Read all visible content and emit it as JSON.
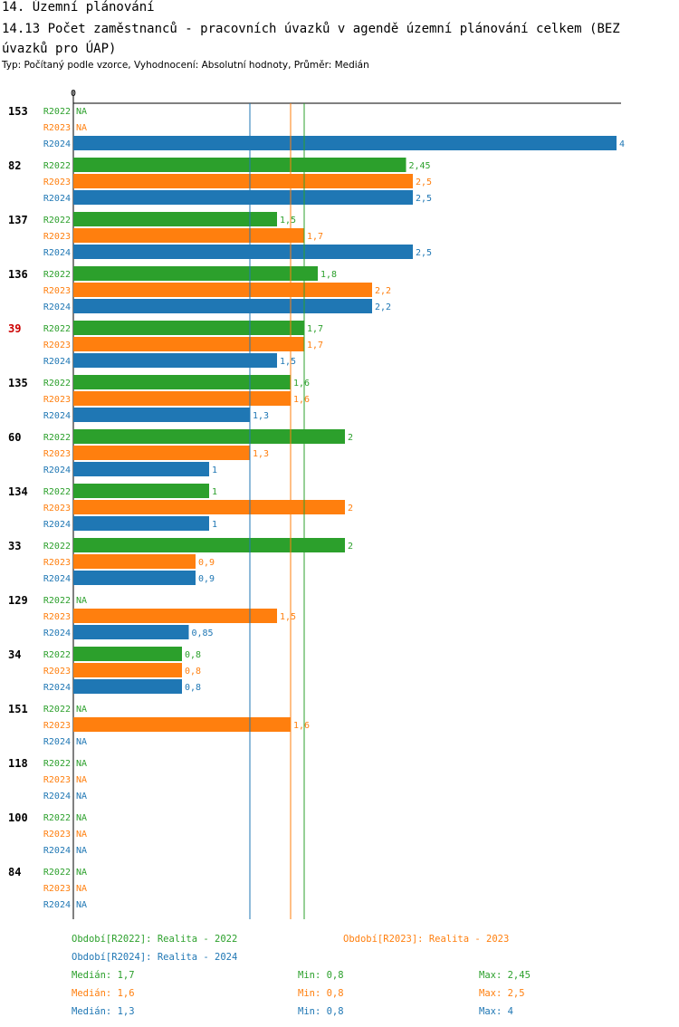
{
  "header": {
    "section": "14. Územní plánování",
    "title": "14.13 Počet zaměstnanců - pracovních úvazků v agendě územní plánování celkem (BEZ úvazků pro ÚAP)",
    "subtitle": "Typ: Počítaný podle vzorce, Vyhodnocení: Absolutní hodnoty, Průměr: Medián"
  },
  "chart_data": {
    "type": "bar",
    "orientation": "horizontal",
    "axis_zero_label": "0",
    "xlim": [
      0,
      4
    ],
    "na_label": "NA",
    "colors": {
      "R2022": "#2ca02c",
      "R2023": "#ff7f0e",
      "R2024": "#1f77b4",
      "highlight": "#cc0000"
    },
    "series_names": [
      "R2022",
      "R2023",
      "R2024"
    ],
    "groups": [
      {
        "label": "153",
        "highlight": false,
        "values": [
          null,
          null,
          4
        ],
        "value_labels": [
          "NA",
          "NA",
          "4"
        ]
      },
      {
        "label": "82",
        "highlight": false,
        "values": [
          2.45,
          2.5,
          2.5
        ],
        "value_labels": [
          "2,45",
          "2,5",
          "2,5"
        ]
      },
      {
        "label": "137",
        "highlight": false,
        "values": [
          1.5,
          1.7,
          2.5
        ],
        "value_labels": [
          "1,5",
          "1,7",
          "2,5"
        ]
      },
      {
        "label": "136",
        "highlight": false,
        "values": [
          1.8,
          2.2,
          2.2
        ],
        "value_labels": [
          "1,8",
          "2,2",
          "2,2"
        ]
      },
      {
        "label": "39",
        "highlight": true,
        "values": [
          1.7,
          1.7,
          1.5
        ],
        "value_labels": [
          "1,7",
          "1,7",
          "1,5"
        ]
      },
      {
        "label": "135",
        "highlight": false,
        "values": [
          1.6,
          1.6,
          1.3
        ],
        "value_labels": [
          "1,6",
          "1,6",
          "1,3"
        ]
      },
      {
        "label": "60",
        "highlight": false,
        "values": [
          2,
          1.3,
          1
        ],
        "value_labels": [
          "2",
          "1,3",
          "1"
        ]
      },
      {
        "label": "134",
        "highlight": false,
        "values": [
          1,
          2,
          1
        ],
        "value_labels": [
          "1",
          "2",
          "1"
        ]
      },
      {
        "label": "33",
        "highlight": false,
        "values": [
          2,
          0.9,
          0.9
        ],
        "value_labels": [
          "2",
          "0,9",
          "0,9"
        ]
      },
      {
        "label": "129",
        "highlight": false,
        "values": [
          null,
          1.5,
          0.85
        ],
        "value_labels": [
          "NA",
          "1,5",
          "0,85"
        ]
      },
      {
        "label": "34",
        "highlight": false,
        "values": [
          0.8,
          0.8,
          0.8
        ],
        "value_labels": [
          "0,8",
          "0,8",
          "0,8"
        ]
      },
      {
        "label": "151",
        "highlight": false,
        "values": [
          null,
          1.6,
          null
        ],
        "value_labels": [
          "NA",
          "1,6",
          "NA"
        ]
      },
      {
        "label": "118",
        "highlight": false,
        "values": [
          null,
          null,
          null
        ],
        "value_labels": [
          "NA",
          "NA",
          "NA"
        ]
      },
      {
        "label": "100",
        "highlight": false,
        "values": [
          null,
          null,
          null
        ],
        "value_labels": [
          "NA",
          "NA",
          "NA"
        ]
      },
      {
        "label": "84",
        "highlight": false,
        "values": [
          null,
          null,
          null
        ],
        "value_labels": [
          "NA",
          "NA",
          "NA"
        ]
      }
    ],
    "median_lines": [
      {
        "series": "R2024",
        "value": 1.3
      },
      {
        "series": "R2023",
        "value": 1.6
      },
      {
        "series": "R2022",
        "value": 1.7
      }
    ],
    "legend": [
      {
        "series": "R2022",
        "text": "Období[R2022]: Realita - 2022"
      },
      {
        "series": "R2023",
        "text": "Období[R2023]: Realita - 2023"
      },
      {
        "series": "R2024",
        "text": "Období[R2024]: Realita - 2024"
      }
    ],
    "stats": [
      {
        "series": "R2022",
        "median": "Medián: 1,7",
        "min": "Min: 0,8",
        "max": "Max: 2,45"
      },
      {
        "series": "R2023",
        "median": "Medián: 1,6",
        "min": "Min: 0,8",
        "max": "Max: 2,5"
      },
      {
        "series": "R2024",
        "median": "Medián: 1,3",
        "min": "Min: 0,8",
        "max": "Max: 4"
      }
    ]
  }
}
